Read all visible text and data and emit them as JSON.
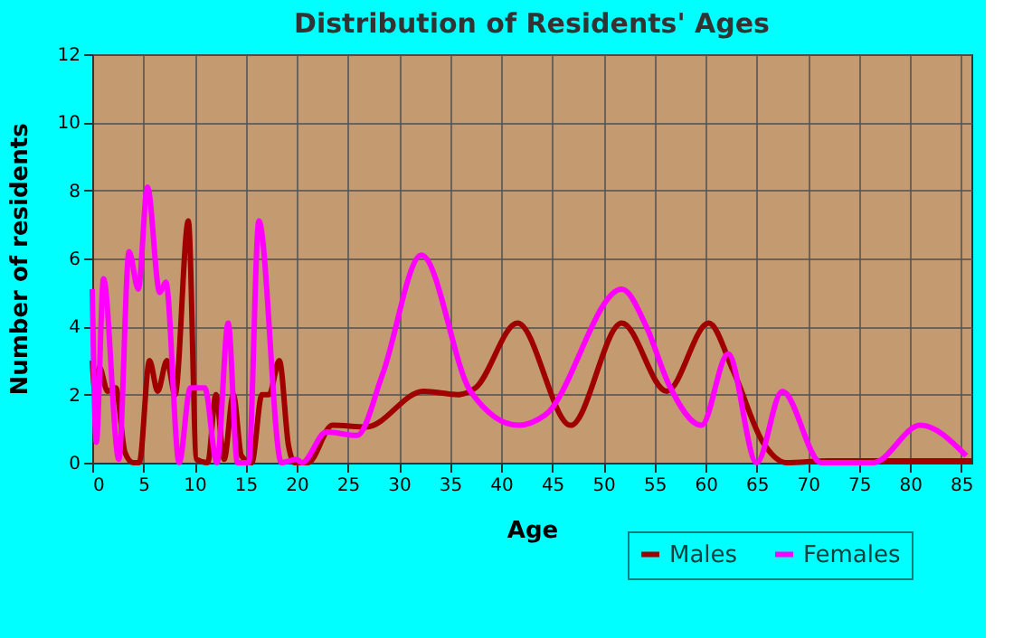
{
  "chart_data": {
    "type": "line",
    "title": "Distribution of Residents' Ages",
    "xlabel": "Age",
    "ylabel": "Number of residents",
    "xlim": [
      0,
      86
    ],
    "ylim": [
      0,
      12
    ],
    "xticks": [
      0,
      5,
      10,
      15,
      20,
      25,
      30,
      35,
      40,
      45,
      50,
      55,
      60,
      65,
      70,
      75,
      80,
      85
    ],
    "yticks": [
      0,
      2,
      4,
      6,
      8,
      10,
      12
    ],
    "grid": true,
    "legend": "bottom right",
    "marker": "none",
    "line_style": "solid",
    "series": [
      {
        "name": "Males",
        "color": "#a00000",
        "x": [
          0,
          0.3,
          0.7,
          1.5,
          2.3,
          3.2,
          4,
          4.6,
          5.6,
          6.4,
          7.3,
          8.1,
          9.4,
          10.2,
          11.3,
          12.1,
          12.9,
          13.8,
          14.6,
          15.6,
          16.6,
          17.3,
          18.3,
          19.2,
          19.8,
          21.1,
          23.5,
          26.8,
          32.4,
          35.8,
          37.5,
          41.6,
          46.8,
          51.8,
          56.2,
          60.3,
          62.7,
          65.6,
          67.9,
          72,
          86
        ],
        "values": [
          3,
          2,
          2.8,
          2.1,
          2.2,
          0.3,
          0,
          0,
          3,
          2.1,
          3,
          2,
          7.1,
          0.1,
          0,
          2,
          0.1,
          2,
          0.2,
          0,
          2,
          2,
          3,
          0.5,
          0,
          0,
          1.1,
          1.05,
          2.1,
          2,
          2.2,
          4.1,
          1.1,
          4.1,
          2.1,
          4.1,
          2.7,
          0.6,
          0,
          0.05,
          0.05
        ]
      },
      {
        "name": "Females",
        "color": "#ff00ff",
        "x": [
          0,
          0.4,
          1.1,
          2.6,
          3.6,
          4.5,
          5.4,
          6.6,
          7.2,
          8.5,
          9.6,
          11,
          12.2,
          13.3,
          14.2,
          15.3,
          16.3,
          18.5,
          20,
          20.5,
          22.9,
          25.9,
          28.4,
          32.2,
          37,
          41.7,
          44.3,
          51.8,
          54.2,
          56.4,
          59.6,
          62.2,
          65,
          67.5,
          71.3,
          76.4,
          81,
          85.5
        ],
        "values": [
          5.1,
          0.6,
          5.4,
          0.1,
          6.2,
          5.1,
          8.1,
          5,
          5.3,
          0,
          2.2,
          2.2,
          0,
          4.1,
          0,
          0,
          7.1,
          0,
          0.1,
          0,
          0.9,
          0.8,
          2.6,
          6.1,
          2.1,
          1.1,
          1.4,
          5.1,
          4,
          2.3,
          1.1,
          3.2,
          0,
          2.1,
          0,
          0,
          1.1,
          0.2
        ]
      }
    ]
  }
}
